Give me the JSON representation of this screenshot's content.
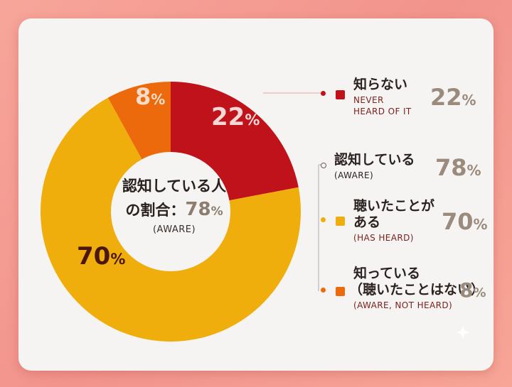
{
  "chart_data": {
    "type": "pie",
    "center_label": {
      "line1": "認知している人",
      "line2_prefix": "の割合：",
      "value": "78",
      "unit": "%",
      "english": "(AWARE)"
    },
    "slices": [
      {
        "label": "知らない",
        "english": "NEVER HEARD OF IT",
        "value": 22,
        "color": "#c0121a"
      },
      {
        "label": "聴いたことがある",
        "english": "(HAS HEARD)",
        "value": 70,
        "color": "#efae0c"
      },
      {
        "label": "知っている（聴いたことはない）",
        "english": "(AWARE, NOT HEARD)",
        "value": 8,
        "color": "#ec6a0c"
      }
    ],
    "slice_labels": {
      "s22": "22",
      "s70": "70",
      "s8": "8",
      "unit": "%"
    }
  },
  "legend": {
    "never": {
      "title": "知らない",
      "en1": "NEVER",
      "en2": "HEARD OF IT",
      "pct": "22",
      "unit": "%"
    },
    "aware": {
      "title": "認知している",
      "en": "(AWARE)",
      "pct": "78",
      "unit": "%"
    },
    "heard": {
      "title1": "聴いたことが",
      "title2": "ある",
      "en": "(HAS HEARD)",
      "pct": "70",
      "unit": "%"
    },
    "notheard": {
      "title1": "知っている",
      "title2": "（聴いたことはない）",
      "en": "(AWARE, NOT HEARD)",
      "pct": "8",
      "unit": "%"
    }
  },
  "colors": {
    "red": "#c0121a",
    "yellow": "#efae0c",
    "orange": "#ec6a0c",
    "percent_gray": "#9a8b7c"
  },
  "icons": {
    "sparkle": "sparkle-icon"
  }
}
